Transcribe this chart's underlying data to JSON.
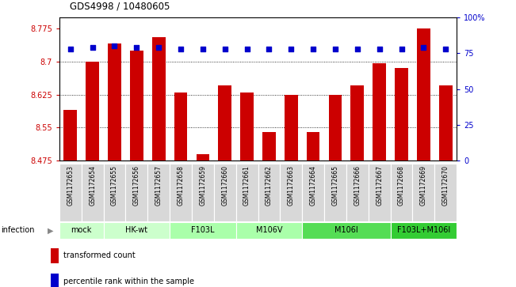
{
  "title": "GDS4998 / 10480605",
  "samples": [
    "GSM1172653",
    "GSM1172654",
    "GSM1172655",
    "GSM1172656",
    "GSM1172657",
    "GSM1172658",
    "GSM1172659",
    "GSM1172660",
    "GSM1172661",
    "GSM1172662",
    "GSM1172663",
    "GSM1172664",
    "GSM1172665",
    "GSM1172666",
    "GSM1172667",
    "GSM1172668",
    "GSM1172669",
    "GSM1172670"
  ],
  "bar_values": [
    8.59,
    8.7,
    8.74,
    8.725,
    8.755,
    8.63,
    8.49,
    8.645,
    8.63,
    8.54,
    8.625,
    8.54,
    8.625,
    8.645,
    8.695,
    8.685,
    8.775,
    8.645
  ],
  "percentile_values": [
    78,
    79,
    80,
    79,
    79,
    78,
    78,
    78,
    78,
    78,
    78,
    78,
    78,
    78,
    78,
    78,
    79,
    78
  ],
  "groups": [
    {
      "label": "mock",
      "start": 0,
      "end": 2,
      "color": "#ccffcc"
    },
    {
      "label": "HK-wt",
      "start": 2,
      "end": 5,
      "color": "#ccffcc"
    },
    {
      "label": "F103L",
      "start": 5,
      "end": 8,
      "color": "#aaffaa"
    },
    {
      "label": "M106V",
      "start": 8,
      "end": 11,
      "color": "#aaffaa"
    },
    {
      "label": "M106I",
      "start": 11,
      "end": 15,
      "color": "#55dd55"
    },
    {
      "label": "F103L+M106I",
      "start": 15,
      "end": 18,
      "color": "#33cc33"
    }
  ],
  "bar_color": "#cc0000",
  "percentile_color": "#0000cc",
  "ylim_left": [
    8.475,
    8.8
  ],
  "ylim_right": [
    0,
    100
  ],
  "yticks_left": [
    8.475,
    8.55,
    8.625,
    8.7,
    8.775
  ],
  "ytick_labels_left": [
    "8.475",
    "8.55",
    "8.625",
    "8.7",
    "8.775"
  ],
  "yticks_right": [
    0,
    25,
    50,
    75,
    100
  ],
  "ytick_labels_right": [
    "0",
    "25",
    "50",
    "75",
    "100%"
  ],
  "dotted_lines": [
    8.55,
    8.625,
    8.7
  ],
  "legend_items": [
    {
      "color": "#cc0000",
      "label": "transformed count"
    },
    {
      "color": "#0000cc",
      "label": "percentile rank within the sample"
    }
  ],
  "infection_label": "infection",
  "sample_bg": "#d8d8d8",
  "figsize": [
    6.51,
    3.63
  ],
  "dpi": 100
}
